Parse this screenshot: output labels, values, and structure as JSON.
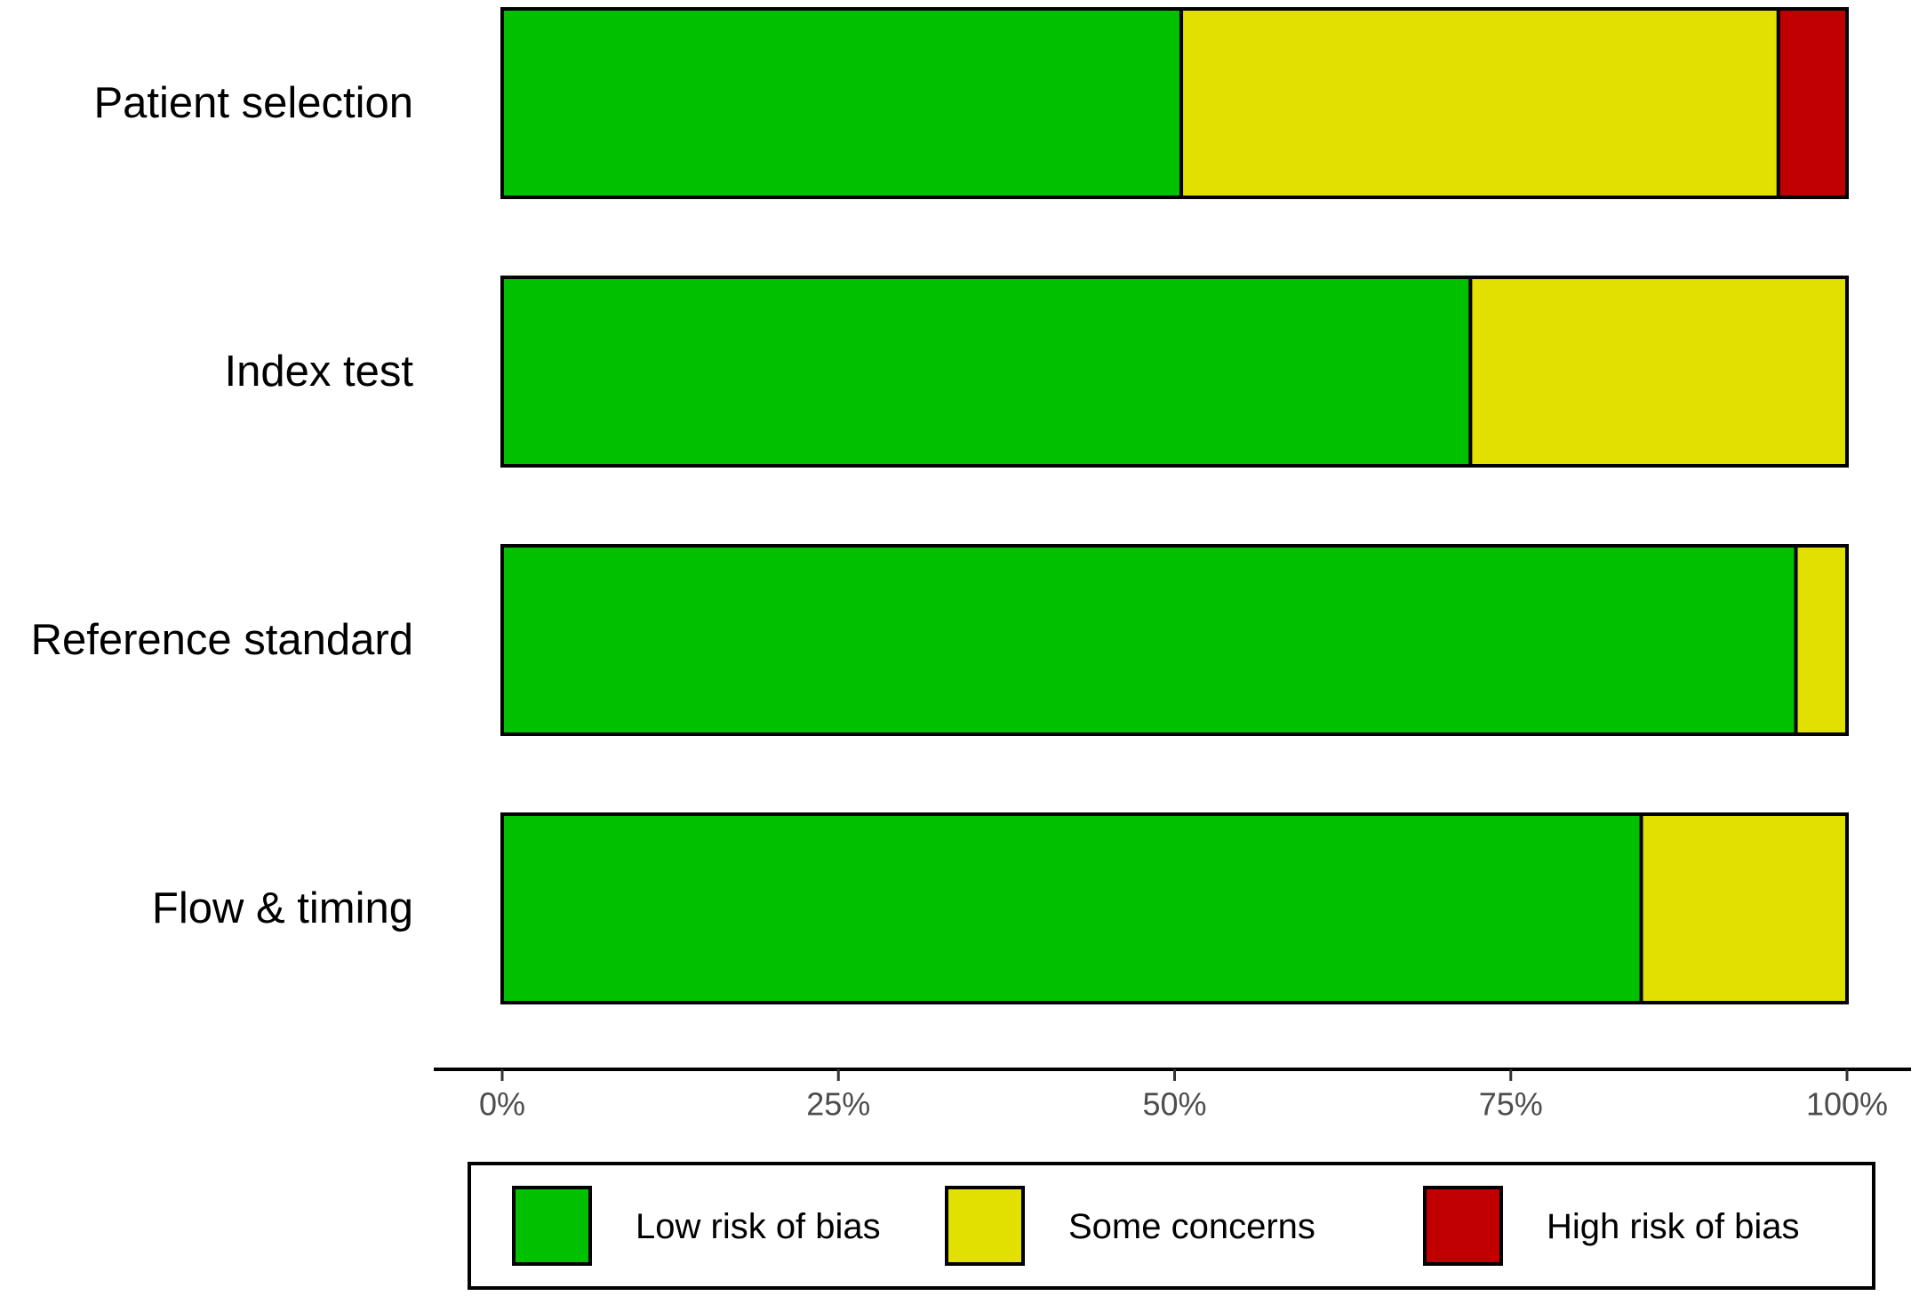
{
  "chart_data": {
    "type": "bar",
    "orientation": "horizontal",
    "stacked": true,
    "categories": [
      "Patient selection",
      "Index test",
      "Reference standard",
      "Flow & timing"
    ],
    "series": [
      {
        "name": "Low risk of bias",
        "color": "#00c000",
        "values": [
          50.5,
          72,
          96.2,
          84.7
        ]
      },
      {
        "name": "Some concerns",
        "color": "#e1e000",
        "values": [
          44.4,
          28,
          3.8,
          15.3
        ]
      },
      {
        "name": "High risk of bias",
        "color": "#c00000",
        "values": [
          5.1,
          0,
          0,
          0
        ]
      }
    ],
    "xlim": [
      0,
      100
    ],
    "x_ticks": [
      "0%",
      "25%",
      "50%",
      "75%",
      "100%"
    ],
    "x_tick_values": [
      0,
      25,
      50,
      75,
      100
    ],
    "grid": false,
    "legend_position": "bottom"
  }
}
